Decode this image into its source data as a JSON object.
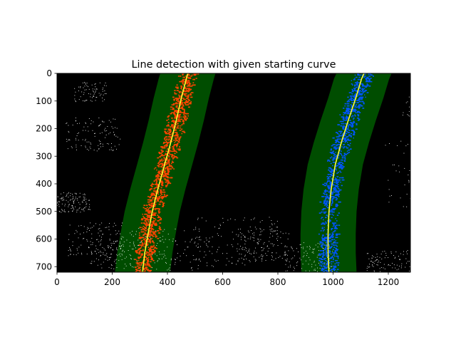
{
  "chart_data": {
    "type": "image",
    "title": "Line detection with given starting curve",
    "xlabel": "",
    "ylabel": "",
    "xlim": [
      0,
      1280
    ],
    "ylim": [
      720,
      0
    ],
    "x_ticks": [
      0,
      200,
      400,
      600,
      800,
      1000,
      1200
    ],
    "y_ticks": [
      0,
      100,
      200,
      300,
      400,
      500,
      600,
      700
    ],
    "x_tick_labels": [
      "0",
      "200",
      "400",
      "600",
      "800",
      "1000",
      "1200"
    ],
    "y_tick_labels": [
      "0",
      "100",
      "200",
      "300",
      "400",
      "500",
      "600",
      "700"
    ],
    "grid": false,
    "legend": "none",
    "background_color": "#000000",
    "search_window_color": "#004d00",
    "fit_line_color": "#ffff33",
    "series": [
      {
        "role": "left-lane",
        "pixel_color": "#ff4400",
        "search_margin": 100,
        "fit_points": [
          {
            "x": 310,
            "y": 720
          },
          {
            "x": 318,
            "y": 650
          },
          {
            "x": 330,
            "y": 580
          },
          {
            "x": 345,
            "y": 500
          },
          {
            "x": 365,
            "y": 420
          },
          {
            "x": 390,
            "y": 330
          },
          {
            "x": 412,
            "y": 250
          },
          {
            "x": 432,
            "y": 170
          },
          {
            "x": 450,
            "y": 90
          },
          {
            "x": 468,
            "y": 20
          },
          {
            "x": 474,
            "y": 0
          }
        ]
      },
      {
        "role": "right-lane",
        "pixel_color": "#0055ff",
        "search_margin": 100,
        "fit_points": [
          {
            "x": 985,
            "y": 720
          },
          {
            "x": 982,
            "y": 650
          },
          {
            "x": 982,
            "y": 580
          },
          {
            "x": 985,
            "y": 500
          },
          {
            "x": 993,
            "y": 420
          },
          {
            "x": 1008,
            "y": 330
          },
          {
            "x": 1030,
            "y": 250
          },
          {
            "x": 1055,
            "y": 170
          },
          {
            "x": 1082,
            "y": 90
          },
          {
            "x": 1103,
            "y": 20
          },
          {
            "x": 1112,
            "y": 0
          }
        ]
      }
    ]
  }
}
